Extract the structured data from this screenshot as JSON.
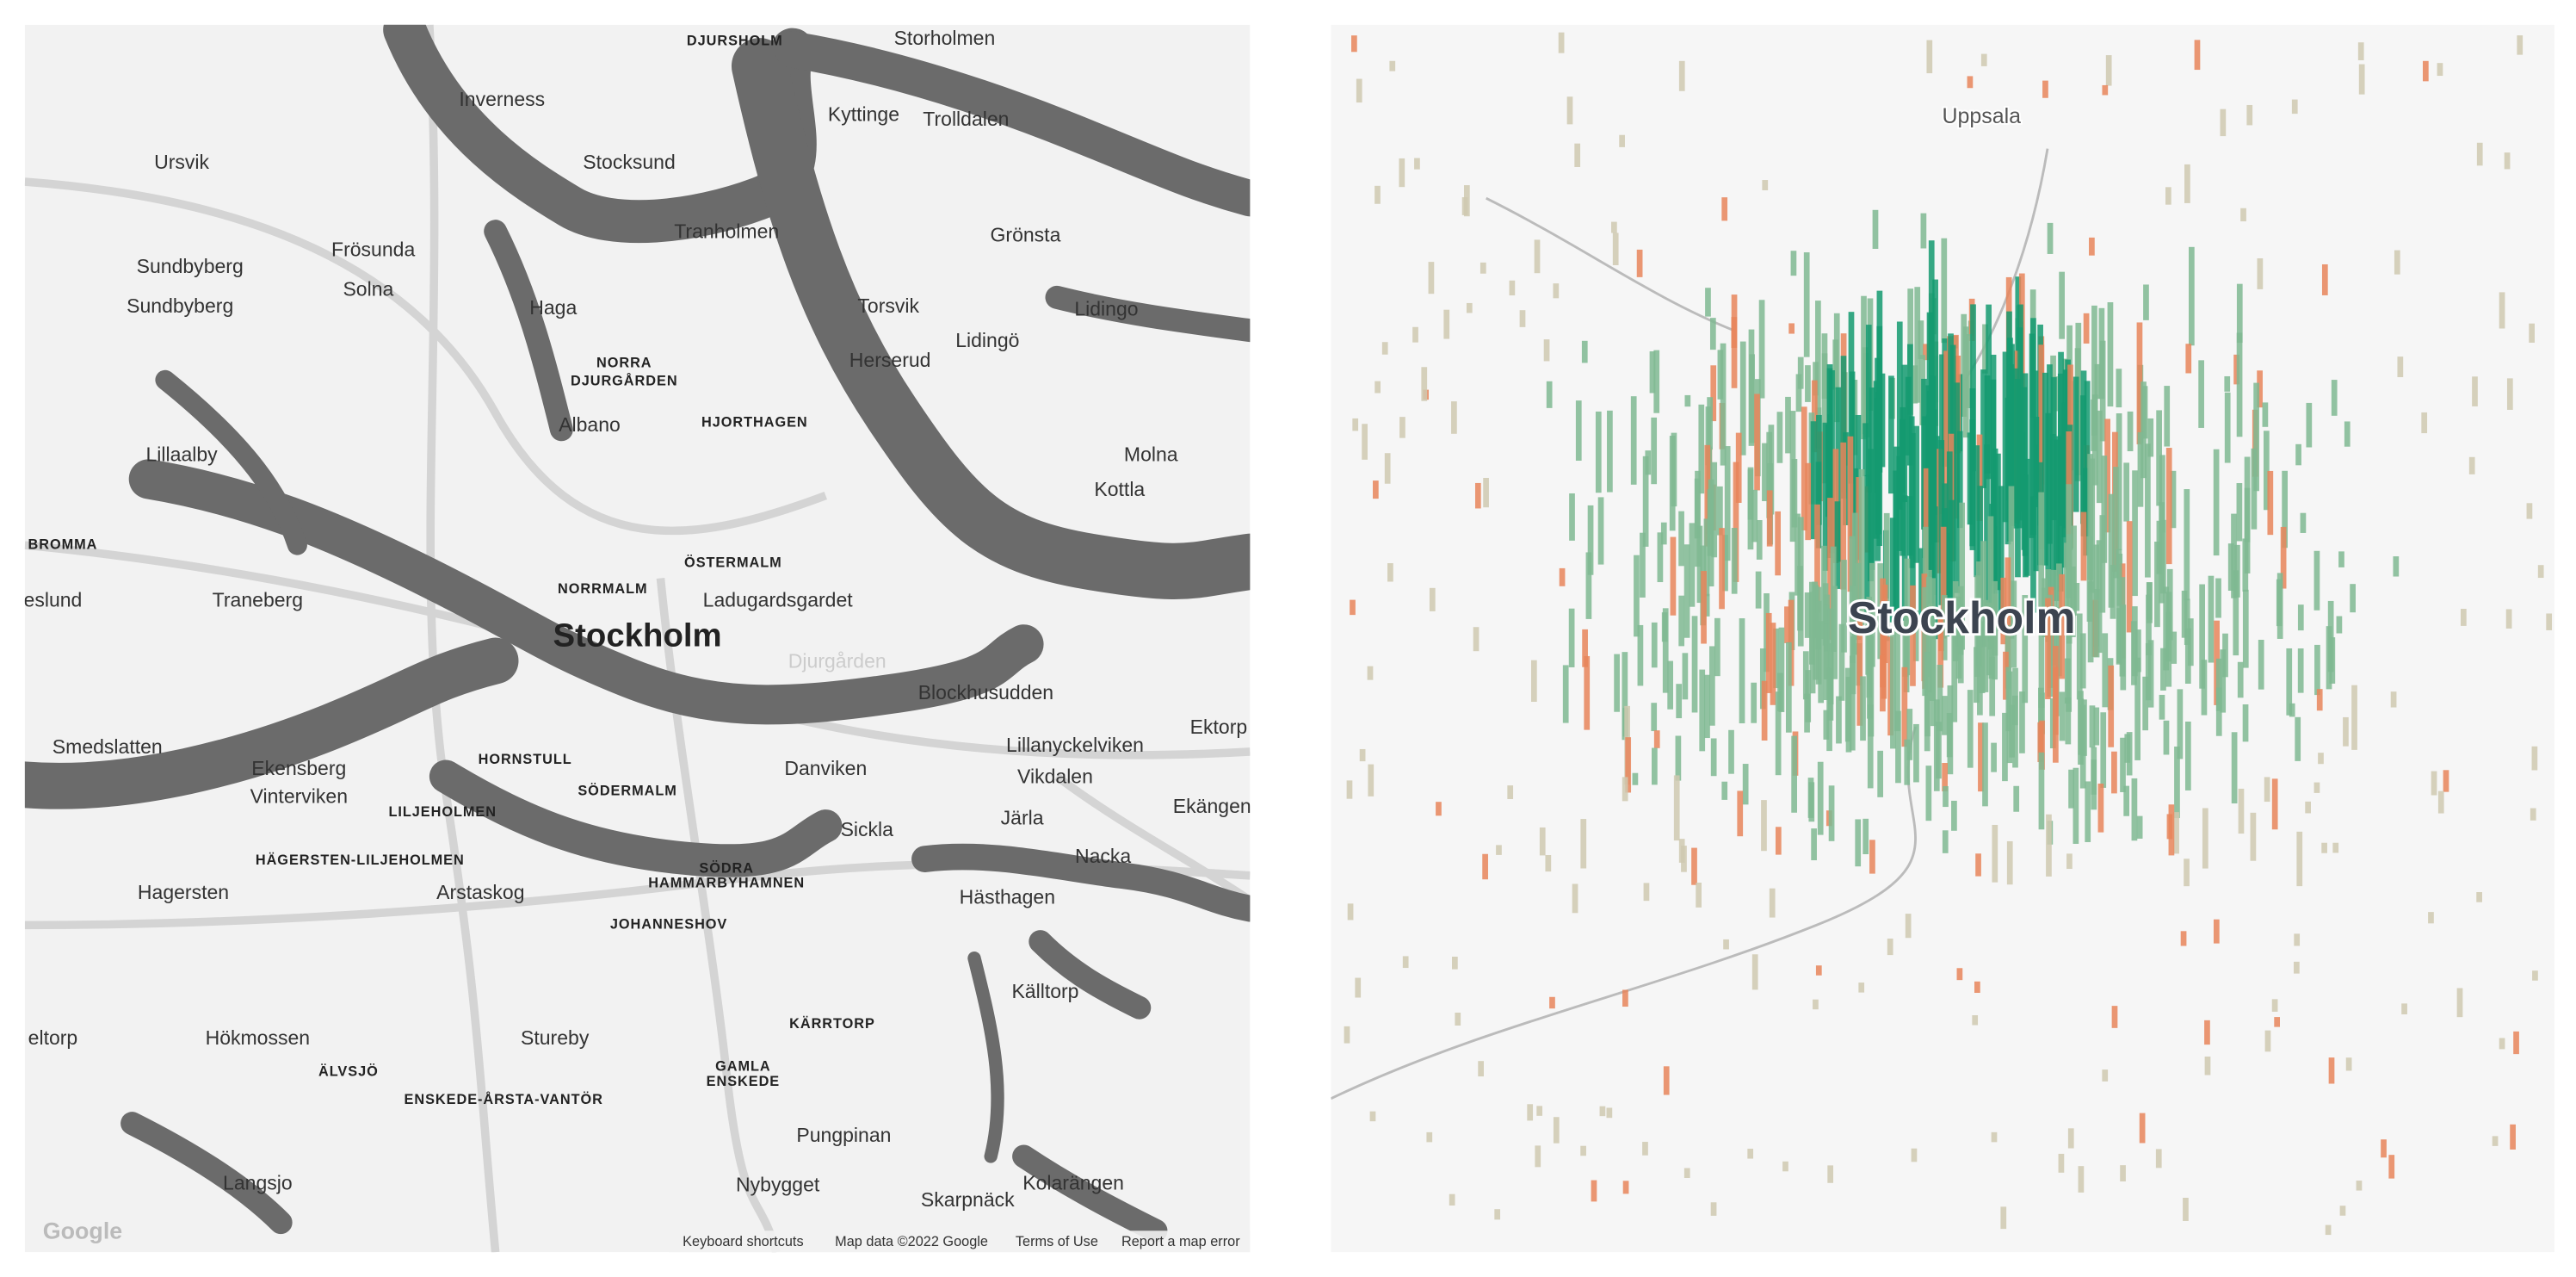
{
  "left_map": {
    "labels": [
      "DJURSHOLM",
      "Storholmen",
      "Inverness",
      "Kyttinge",
      "Trolldalen",
      "Ursvik",
      "Stocksund",
      "Sundbyberg",
      "Frösunda",
      "Tranholmen",
      "Grönsta",
      "Solna",
      "Sundbyberg",
      "Haga",
      "Torsvik",
      "Lidingo",
      "Herserud",
      "Lidingö",
      "NORRA",
      "DJURGÅRDEN",
      "Albano",
      "HJORTHAGEN",
      "Lillaalby",
      "Molna",
      "Kottla",
      "BROMMA",
      "ÖSTERMALM",
      "NORRMALM",
      "Traneberg",
      "eslund",
      "Ladugardsgardet",
      "Stockholm",
      "Djurgården",
      "Blockhusudden",
      "Smedslatten",
      "Ekensberg",
      "Vinterviken",
      "HORNSTULL",
      "SÖDERMALM",
      "LILJEHOLMEN",
      "Danviken",
      "Lillanyckelviken",
      "Ektorp",
      "Vikdalen",
      "Järla",
      "Ekängen",
      "Sickla",
      "HÄGERSTEN-LILJEHOLMEN",
      "SÖDRA",
      "HAMMARBYHAMNEN",
      "Nacka",
      "Hagersten",
      "Arstaskog",
      "JOHANNESHOV",
      "Hästhagen",
      "eltorp",
      "Hökmossen",
      "Stureby",
      "KÄRRTORP",
      "Källtorp",
      "ÄLVSJÖ",
      "GAMLA",
      "ENSKEDE",
      "ENSKEDE-ÅRSTA-VANTÖR",
      "Pungpinan",
      "Langsjo",
      "Nybygget",
      "Skarpnäck",
      "Kolarängen"
    ],
    "logo": "Google",
    "footer": [
      "Keyboard shortcuts",
      "Map data ©2022 Google",
      "Terms of Use",
      "Report a map error"
    ]
  },
  "right_map": {
    "labels": [
      "Uppsala",
      "Stockholm"
    ]
  }
}
